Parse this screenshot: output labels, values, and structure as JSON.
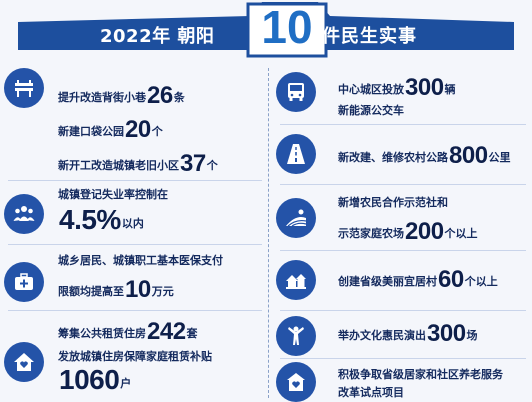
{
  "header": {
    "prefix": "2022年 朝阳",
    "big": "10",
    "suffix": "件民生实事"
  },
  "left": [
    {
      "icon": "bench-icon",
      "lines": [
        {
          "pre": "提升改造背街小巷",
          "num": "26",
          "unit": "条"
        },
        {
          "pre": "新建口袋公园",
          "num": "20",
          "unit": "个"
        },
        {
          "pre": "新开工改造城镇老旧小区",
          "num": "37",
          "unit": "个"
        }
      ]
    },
    {
      "icon": "people-group-icon",
      "lines": [
        {
          "pre": "城镇登记失业率控制在",
          "num": "",
          "unit": ""
        },
        {
          "pre": "",
          "num": "4.5%",
          "unit": "以内"
        }
      ]
    },
    {
      "icon": "medical-kit-icon",
      "lines": [
        {
          "pre": "城乡居民、城镇职工基本医保支付",
          "num": "",
          "unit": ""
        },
        {
          "pre": "限额均提高至",
          "num": "10",
          "unit": "万元"
        }
      ]
    },
    {
      "icon": "house-heart-icon",
      "lines": [
        {
          "pre": "筹集公共租赁住房",
          "num": "242",
          "unit": "套"
        },
        {
          "pre": "发放城镇住房保障家庭租赁补贴",
          "num": "",
          "unit": ""
        },
        {
          "pre": "",
          "num": "1060",
          "unit": "户"
        }
      ]
    }
  ],
  "right": [
    {
      "icon": "bus-icon",
      "lines": [
        {
          "pre": "中心城区投放",
          "num": "300",
          "unit": "辆"
        },
        {
          "pre": "新能源公交车",
          "num": "",
          "unit": ""
        }
      ]
    },
    {
      "icon": "road-icon",
      "lines": [
        {
          "pre": "新改建、维修农村公路",
          "num": "800",
          "unit": "公里"
        }
      ]
    },
    {
      "icon": "farm-field-icon",
      "lines": [
        {
          "pre": "新增农民合作示范社和",
          "num": "",
          "unit": ""
        },
        {
          "pre": "示范家庭农场",
          "num": "200",
          "unit": "个以上"
        }
      ]
    },
    {
      "icon": "village-icon",
      "lines": [
        {
          "pre": "创建省级美丽宜居村",
          "num": "60",
          "unit": "个以上"
        }
      ]
    },
    {
      "icon": "performer-icon",
      "lines": [
        {
          "pre": "举办文化惠民演出",
          "num": "300",
          "unit": "场"
        }
      ]
    },
    {
      "icon": "elderly-care-icon",
      "lines": [
        {
          "pre": "积极争取省级居家和社区养老服务",
          "num": "",
          "unit": ""
        },
        {
          "pre": "改革试点项目",
          "num": "",
          "unit": ""
        }
      ]
    }
  ]
}
